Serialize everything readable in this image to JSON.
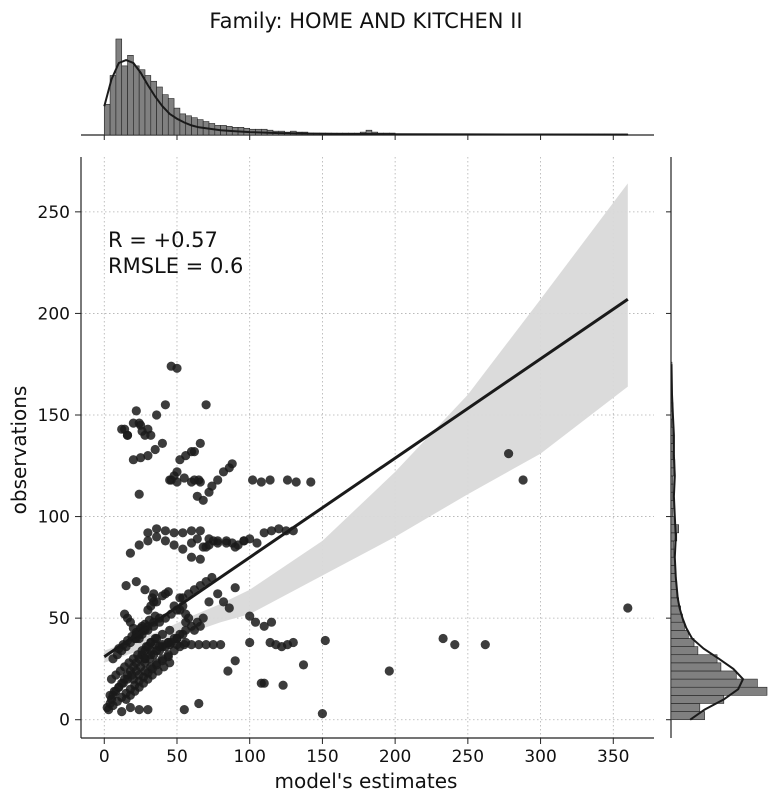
{
  "title": "Family: HOME AND KITCHEN II",
  "colors": {
    "points": "#1a1a1a",
    "line": "#1a1a1a",
    "band": "#d9d9d9",
    "bars": "#808080",
    "grid": "#b0b0b0"
  },
  "chart_data": {
    "type": "scatter",
    "title": "Family: HOME AND KITCHEN II",
    "xlabel": "model's estimates",
    "ylabel": "observations",
    "xlim": [
      -16,
      378
    ],
    "ylim": [
      -9,
      277
    ],
    "xticks": [
      0,
      50,
      100,
      150,
      200,
      250,
      300,
      350
    ],
    "yticks": [
      0,
      50,
      100,
      150,
      200,
      250
    ],
    "grid": true,
    "annotation": {
      "r_line": "R = +0.57",
      "rmsle_line": "RMSLE =  0.6"
    },
    "regression": {
      "x": [
        0,
        360
      ],
      "y": [
        31,
        207
      ]
    },
    "confidence_band": {
      "x": [
        0,
        20,
        40,
        60,
        80,
        100,
        150,
        200,
        250,
        300,
        360
      ],
      "upper": [
        34,
        39,
        44,
        51,
        57,
        64,
        88,
        122,
        160,
        207,
        264
      ],
      "lower": [
        28,
        33,
        38,
        43,
        48,
        52,
        71,
        90,
        111,
        131,
        164
      ]
    },
    "points_x": [
      2,
      4,
      5,
      6,
      8,
      10,
      12,
      14,
      16,
      18,
      20,
      22,
      24,
      26,
      28,
      30,
      32,
      35,
      3,
      6,
      9,
      12,
      15,
      18,
      21,
      24,
      27,
      30,
      33,
      36,
      40,
      44,
      4,
      7,
      10,
      13,
      16,
      19,
      22,
      25,
      28,
      31,
      34,
      38,
      42,
      46,
      50,
      5,
      8,
      11,
      14,
      17,
      20,
      23,
      26,
      29,
      32,
      36,
      40,
      45,
      6,
      9,
      12,
      15,
      18,
      21,
      24,
      27,
      30,
      34,
      38,
      10,
      13,
      16,
      19,
      22,
      25,
      28,
      31,
      35,
      15,
      18,
      21,
      24,
      27,
      30,
      33,
      37,
      41,
      45,
      20,
      24,
      28,
      32,
      36,
      40,
      44,
      48,
      52,
      56,
      22,
      26,
      30,
      34,
      38,
      42,
      46,
      50,
      54,
      28,
      32,
      36,
      40,
      44,
      48,
      52,
      56,
      60,
      64,
      35,
      40,
      45,
      50,
      55,
      60,
      65,
      70,
      75,
      80,
      12,
      18,
      24,
      30,
      55,
      65,
      85,
      110,
      150,
      196,
      262,
      360,
      108,
      123,
      137,
      90,
      100,
      115,
      14,
      16,
      20,
      22,
      24,
      26,
      28,
      30,
      32,
      25,
      36,
      42,
      46,
      50,
      56,
      62,
      66,
      70,
      75,
      60,
      64,
      68,
      72,
      78,
      84,
      88,
      92,
      96,
      100,
      105,
      110,
      115,
      120,
      125,
      130,
      30,
      36,
      42,
      48,
      54,
      60,
      66,
      72,
      78,
      84,
      90,
      96,
      102,
      108,
      114,
      126,
      132,
      142,
      46,
      48,
      50,
      52,
      60,
      62,
      64,
      66,
      68,
      72,
      74,
      78,
      82,
      86,
      88,
      20,
      25,
      30,
      35,
      40,
      45,
      50,
      55,
      60,
      65,
      70,
      18,
      24,
      30,
      36,
      42,
      48,
      54,
      60,
      66,
      72,
      54,
      58,
      62,
      66,
      70,
      74,
      78,
      82,
      86,
      90,
      15,
      22,
      28,
      34,
      44,
      52,
      40,
      36,
      32,
      30,
      14,
      16,
      18,
      20,
      22,
      24,
      26,
      28,
      33,
      34,
      42,
      48,
      52,
      56,
      58,
      100,
      104,
      110,
      114,
      118,
      122,
      126,
      130,
      152,
      233,
      241,
      278,
      288,
      12,
      16,
      24,
      28,
      32,
      38,
      44,
      50,
      54,
      62,
      66,
      56,
      68
    ],
    "points_y": [
      6,
      8,
      10,
      12,
      14,
      16,
      18,
      20,
      22,
      24,
      26,
      28,
      30,
      32,
      34,
      36,
      38,
      40,
      5,
      7,
      9,
      11,
      13,
      15,
      17,
      19,
      21,
      23,
      25,
      27,
      29,
      31,
      12,
      14,
      16,
      18,
      20,
      22,
      24,
      26,
      28,
      30,
      32,
      34,
      36,
      38,
      40,
      20,
      22,
      24,
      26,
      28,
      30,
      32,
      34,
      36,
      38,
      40,
      42,
      44,
      30,
      32,
      34,
      36,
      38,
      40,
      42,
      44,
      46,
      48,
      50,
      35,
      37,
      39,
      41,
      43,
      45,
      47,
      49,
      51,
      10,
      12,
      14,
      16,
      18,
      20,
      22,
      24,
      26,
      28,
      20,
      22,
      24,
      26,
      28,
      30,
      32,
      34,
      36,
      38,
      40,
      42,
      44,
      46,
      48,
      50,
      52,
      54,
      56,
      30,
      32,
      34,
      36,
      38,
      40,
      42,
      44,
      46,
      48,
      37,
      37,
      37,
      37,
      37,
      37,
      37,
      37,
      37,
      37,
      4,
      6,
      5,
      5,
      5,
      8,
      24,
      18,
      3,
      24,
      37,
      55,
      18,
      17,
      27,
      29,
      38,
      48,
      143,
      140,
      146,
      152,
      146,
      142,
      140,
      143,
      140,
      145,
      150,
      155,
      174,
      173,
      130,
      132,
      136,
      155,
      88,
      87,
      89,
      85,
      86,
      88,
      87,
      87,
      86,
      88,
      89,
      87,
      92,
      93,
      94,
      93,
      93,
      92,
      94,
      93,
      92,
      92,
      93,
      93,
      89,
      87,
      88,
      85,
      88,
      118,
      117,
      118,
      118,
      117,
      117,
      118,
      120,
      122,
      128,
      132,
      118,
      110,
      117,
      108,
      112,
      115,
      118,
      122,
      124,
      126,
      128,
      129,
      130,
      133,
      136,
      118,
      117,
      119,
      117,
      118,
      85,
      82,
      86,
      88,
      90,
      88,
      86,
      84,
      80,
      79,
      58,
      60,
      62,
      64,
      66,
      68,
      70,
      62,
      58,
      55,
      65,
      66,
      68,
      64,
      62,
      63,
      60,
      61,
      58,
      56,
      54,
      52,
      50,
      48,
      45,
      42,
      40,
      46,
      44,
      60,
      58,
      62,
      56,
      54,
      52,
      50,
      51,
      48,
      46,
      38,
      37,
      36,
      37,
      38,
      39,
      40,
      37,
      131,
      118,
      143,
      140,
      111,
      30,
      34,
      36,
      38,
      40,
      42,
      44,
      46,
      48,
      50,
      52,
      54,
      65
    ],
    "top_hist": {
      "bin_start": 0,
      "bin_width": 4,
      "density_max": 100,
      "counts": [
        32,
        62,
        100,
        72,
        83,
        72,
        68,
        62,
        56,
        50,
        42,
        38,
        28,
        22,
        20,
        18,
        16,
        14,
        12,
        10,
        10,
        9,
        8,
        8,
        7,
        6,
        6,
        6,
        5,
        4,
        4,
        3,
        4,
        3,
        3,
        2,
        2,
        2,
        2,
        2,
        2,
        2,
        2,
        2,
        3,
        5,
        3,
        2,
        2,
        2,
        1,
        1,
        1,
        1,
        1,
        1,
        1,
        1,
        1,
        1,
        1,
        1,
        1,
        1,
        1,
        1,
        1,
        1,
        1,
        1,
        1,
        1,
        1,
        1,
        1,
        1,
        1,
        1,
        1,
        1,
        1,
        1,
        1,
        1,
        1,
        1,
        1,
        1,
        1,
        1
      ],
      "kde_x": [
        0,
        5,
        10,
        15,
        20,
        25,
        30,
        35,
        40,
        45,
        50,
        55,
        60,
        65,
        70,
        80,
        90,
        100,
        120,
        140,
        160,
        180,
        200,
        250,
        300,
        360
      ],
      "kde_y": [
        30,
        58,
        75,
        78,
        75,
        65,
        52,
        40,
        30,
        22,
        17,
        13,
        10,
        8,
        7,
        5,
        4,
        3,
        2,
        1.5,
        1,
        1,
        0.8,
        0.6,
        0.5,
        0.4
      ]
    },
    "right_hist": {
      "bin_start": 0,
      "bin_width": 4,
      "density_max": 100,
      "counts": [
        35,
        30,
        55,
        100,
        90,
        68,
        52,
        48,
        28,
        24,
        18,
        14,
        12,
        10,
        8,
        6,
        6,
        5,
        4,
        4,
        3,
        3,
        6,
        8,
        4,
        2,
        3,
        2,
        2,
        2,
        3,
        4,
        2,
        3,
        2,
        2,
        1,
        2,
        2,
        1,
        1,
        1,
        1,
        1
      ],
      "kde_y": [
        0,
        5,
        10,
        15,
        20,
        25,
        30,
        35,
        40,
        45,
        50,
        55,
        60,
        70,
        80,
        90,
        100,
        110,
        120,
        130,
        140,
        150,
        160,
        175
      ],
      "kde_x": [
        20,
        35,
        55,
        70,
        75,
        65,
        50,
        34,
        22,
        16,
        12,
        9,
        7,
        5,
        4,
        5,
        4,
        3,
        4,
        3,
        3,
        2,
        1,
        0.5
      ]
    }
  }
}
